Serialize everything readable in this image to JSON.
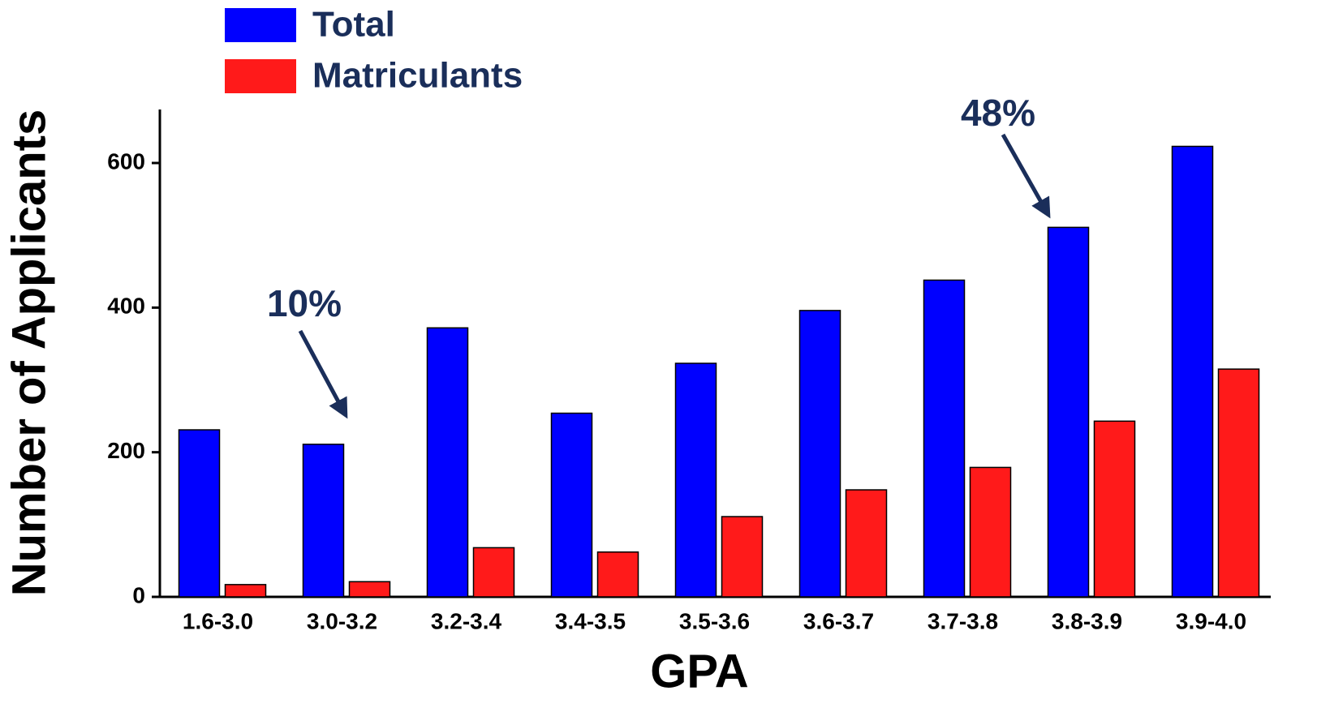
{
  "chart_data": {
    "type": "bar",
    "x_label": "GPA",
    "y_label": "Number of Applicants",
    "categories": [
      "1.6-3.0",
      "3.0-3.2",
      "3.2-3.4",
      "3.4-3.5",
      "3.5-3.6",
      "3.6-3.7",
      "3.7-3.8",
      "3.8-3.9",
      "3.9-4.0"
    ],
    "series": [
      {
        "name": "Total",
        "color": "#0000ff",
        "values": [
          231,
          211,
          372,
          254,
          323,
          396,
          438,
          511,
          623
        ]
      },
      {
        "name": "Matriculants",
        "color": "#ff1a1a",
        "values": [
          17,
          21,
          68,
          62,
          111,
          148,
          179,
          243,
          315
        ]
      }
    ],
    "ylim": [
      0,
      674
    ],
    "yticks": [
      0,
      200,
      400,
      600
    ],
    "annotations": [
      {
        "text": "10%"
      },
      {
        "text": "48%"
      }
    ],
    "legend": "top-left"
  }
}
